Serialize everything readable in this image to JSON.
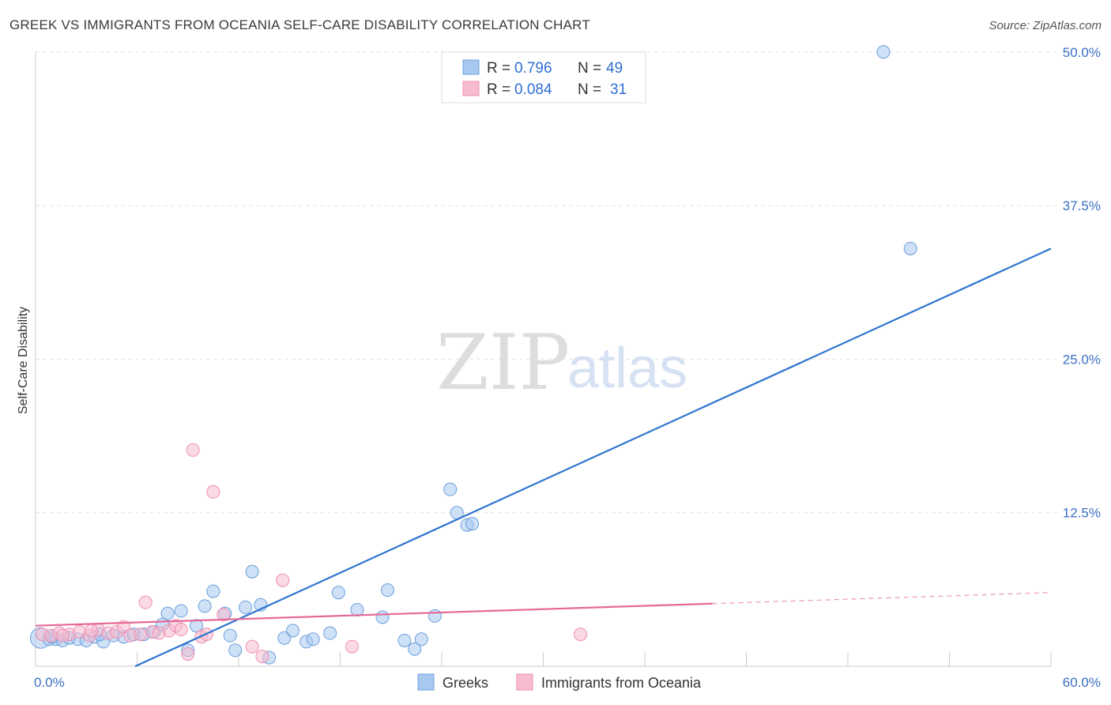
{
  "header": {
    "title": "GREEK VS IMMIGRANTS FROM OCEANIA SELF-CARE DISABILITY CORRELATION CHART",
    "source": "Source: ZipAtlas.com"
  },
  "watermark": {
    "zip": "ZIP",
    "atlas": "atlas"
  },
  "legend": {
    "rows": [
      {
        "r_label": "R =",
        "r_value": "0.796",
        "n_label": "N =",
        "n_value": "49",
        "color": "#a8c8f0"
      },
      {
        "r_label": "R =",
        "r_value": "0.084",
        "n_label": "N =",
        "n_value": "31",
        "color": "#f6bcd0"
      }
    ]
  },
  "bottom_legend": [
    {
      "label": "Greeks",
      "color": "#a8c8f0"
    },
    {
      "label": "Immigrants from Oceania",
      "color": "#f6bcd0"
    }
  ],
  "chart_data": {
    "type": "scatter",
    "title": "GREEK VS IMMIGRANTS FROM OCEANIA SELF-CARE DISABILITY CORRELATION CHART",
    "ylabel": "Self-Care Disability",
    "xlabel": "",
    "xlim": [
      0,
      60
    ],
    "ylim": [
      0,
      50.5
    ],
    "x_tick_labels": [
      {
        "value": 0,
        "label": "0.0%"
      },
      {
        "value": 60,
        "label": "60.0%"
      }
    ],
    "y_tick_labels": [
      {
        "value": 12.5,
        "label": "12.5%"
      },
      {
        "value": 25,
        "label": "25.0%"
      },
      {
        "value": 37.5,
        "label": "37.5%"
      },
      {
        "value": 50,
        "label": "50.0%"
      }
    ],
    "grid": true,
    "series": [
      {
        "name": "Greeks",
        "color": "#6b9fdc",
        "fill": "#a8c8f0",
        "points": [
          [
            0.3,
            2.3
          ],
          [
            0.8,
            2.2
          ],
          [
            1.2,
            2.2
          ],
          [
            1.6,
            2.1
          ],
          [
            2.0,
            2.3
          ],
          [
            2.5,
            2.2
          ],
          [
            3.0,
            2.1
          ],
          [
            3.5,
            2.4
          ],
          [
            4.0,
            2.0
          ],
          [
            4.6,
            2.5
          ],
          [
            5.2,
            2.4
          ],
          [
            5.8,
            2.6
          ],
          [
            6.4,
            2.6
          ],
          [
            7.0,
            2.8
          ],
          [
            7.5,
            3.4
          ],
          [
            7.8,
            4.3
          ],
          [
            8.6,
            4.5
          ],
          [
            9.0,
            1.3
          ],
          [
            9.5,
            3.3
          ],
          [
            10.0,
            4.9
          ],
          [
            10.5,
            6.1
          ],
          [
            11.2,
            4.3
          ],
          [
            11.5,
            2.5
          ],
          [
            11.8,
            1.3
          ],
          [
            12.4,
            4.8
          ],
          [
            12.8,
            7.7
          ],
          [
            13.3,
            5.0
          ],
          [
            13.8,
            0.7
          ],
          [
            14.7,
            2.3
          ],
          [
            15.2,
            2.9
          ],
          [
            16.0,
            2.0
          ],
          [
            16.4,
            2.2
          ],
          [
            17.4,
            2.7
          ],
          [
            17.9,
            6.0
          ],
          [
            19.0,
            4.6
          ],
          [
            20.5,
            4.0
          ],
          [
            20.8,
            6.2
          ],
          [
            21.8,
            2.1
          ],
          [
            22.4,
            1.4
          ],
          [
            22.8,
            2.2
          ],
          [
            23.6,
            4.1
          ],
          [
            24.5,
            14.4
          ],
          [
            24.9,
            12.5
          ],
          [
            25.5,
            11.5
          ],
          [
            25.8,
            11.6
          ],
          [
            50.1,
            50.0
          ],
          [
            51.7,
            34.0
          ],
          [
            1.0,
            2.4
          ],
          [
            3.8,
            2.6
          ]
        ],
        "trendline": {
          "x": [
            0,
            60
          ],
          "y": [
            -3.7,
            34.0
          ]
        }
      },
      {
        "name": "Immigrants from Oceania",
        "color": "#ee8eb0",
        "fill": "#f6bcd0",
        "points": [
          [
            0.4,
            2.6
          ],
          [
            0.9,
            2.5
          ],
          [
            1.4,
            2.7
          ],
          [
            2.0,
            2.6
          ],
          [
            2.6,
            2.8
          ],
          [
            3.2,
            2.5
          ],
          [
            3.7,
            3.0
          ],
          [
            4.3,
            2.7
          ],
          [
            4.8,
            2.8
          ],
          [
            5.2,
            3.2
          ],
          [
            5.6,
            2.5
          ],
          [
            6.2,
            2.6
          ],
          [
            6.5,
            5.2
          ],
          [
            6.9,
            2.8
          ],
          [
            7.3,
            2.7
          ],
          [
            7.9,
            2.9
          ],
          [
            8.3,
            3.3
          ],
          [
            8.6,
            3.0
          ],
          [
            9.0,
            1.0
          ],
          [
            9.3,
            17.6
          ],
          [
            9.8,
            2.4
          ],
          [
            10.1,
            2.6
          ],
          [
            10.5,
            14.2
          ],
          [
            11.1,
            4.2
          ],
          [
            12.8,
            1.6
          ],
          [
            13.4,
            0.8
          ],
          [
            14.6,
            7.0
          ],
          [
            18.7,
            1.6
          ],
          [
            32.2,
            2.6
          ],
          [
            1.6,
            2.5
          ],
          [
            3.3,
            2.9
          ]
        ],
        "trendline": {
          "x": [
            0,
            40
          ],
          "y": [
            3.3,
            5.1
          ]
        },
        "trendline_extension": {
          "x": [
            40,
            60
          ],
          "y": [
            5.1,
            6.0
          ]
        }
      }
    ]
  }
}
